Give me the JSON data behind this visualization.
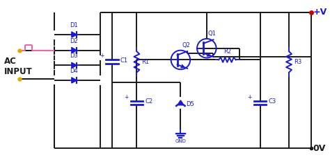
{
  "bg_color": "#ffffff",
  "line_color": "#1a1a1a",
  "blue_color": "#1a1acc",
  "pink_color": "#ee66aa",
  "yellow_color": "#ddaa00",
  "red_color": "#cc0000",
  "wire_lw": 1.4,
  "comp_lw": 1.4,
  "label_fontsize": 6.0,
  "ac_label": "AC\nINPUT",
  "plus_v_label": "+V",
  "zero_v_label": "0V",
  "gnd_label": "GND"
}
